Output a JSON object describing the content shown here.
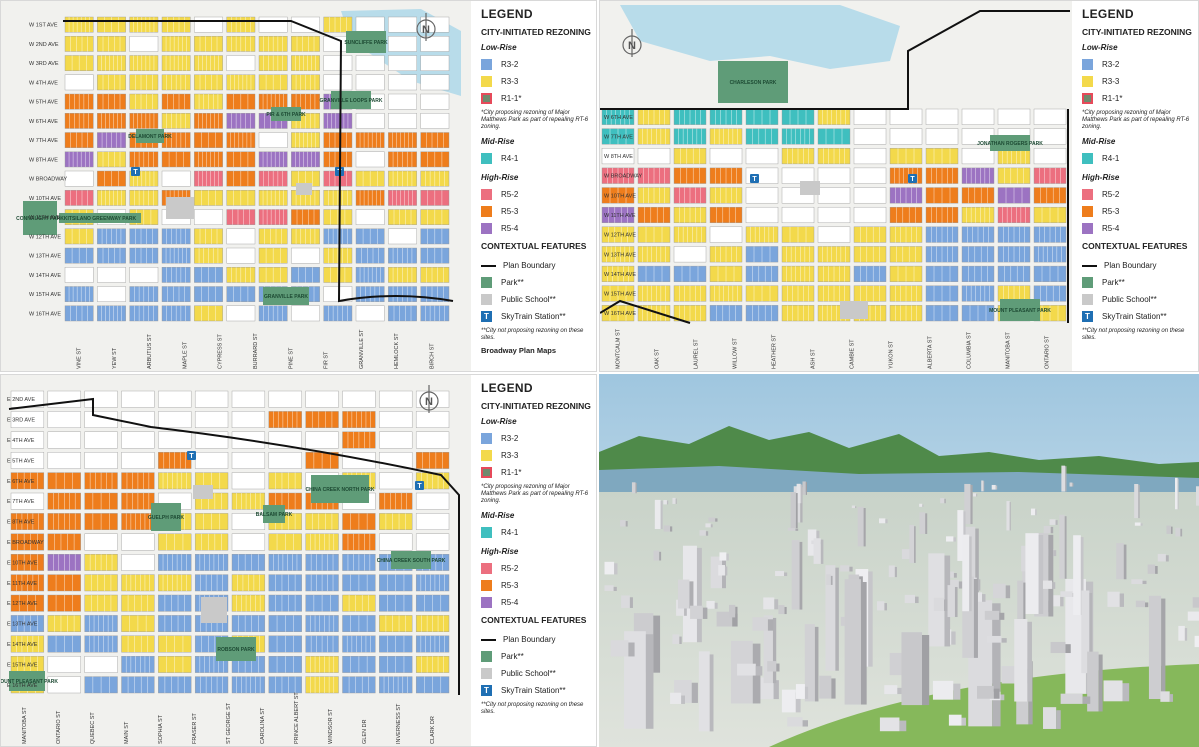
{
  "colors": {
    "R3-2": "#7aa5dc",
    "R3-3": "#f3d94b",
    "R1-1*": "#6f8a6e",
    "R4-1": "#3fbfbf",
    "R5-2": "#ec6f7f",
    "R5-3": "#ee7d1c",
    "R5-4": "#9c73c2",
    "park": "#5f9c78",
    "school": "#c9c9c9",
    "skytrain": "#1f6fb3",
    "water": "#b8dcea",
    "block": "#ffffff",
    "street": "#cfcfcf",
    "boundary": "#111111"
  },
  "legend": {
    "title": "LEGEND",
    "section": "CITY-INITIATED REZONING",
    "low_rise": "Low-Rise",
    "items_low": [
      "R3-2",
      "R3-3",
      "R1-1*"
    ],
    "note_r1": "*City proposing rezoning of Major Matthews Park as part of repealing RT-6 zoning.",
    "mid_rise": "Mid-Rise",
    "items_mid": [
      "R4-1"
    ],
    "high_rise": "High-Rise",
    "items_high": [
      "R5-2",
      "R5-3",
      "R5-4"
    ],
    "contextual": "CONTEXTUAL FEATURES",
    "plan_boundary": "Plan Boundary",
    "park": "Park**",
    "public_school": "Public School**",
    "skytrain": "SkyTrain Station**",
    "skytrain_glyph": "T",
    "note_park": "**City not proposing rezoning on these sites.",
    "source": "Broadway Plan Maps"
  },
  "north": "N",
  "map1": {
    "avenues": [
      "W 1ST AVE",
      "W 2ND AVE",
      "W 3RD AVE",
      "W 4TH AVE",
      "W 5TH AVE",
      "W 6TH AVE",
      "W 7TH AVE",
      "W 8TH AVE",
      "W BROADWAY",
      "W 10TH AVE",
      "W 11TH AVE",
      "W 12TH AVE",
      "W 13TH AVE",
      "W 14TH AVE",
      "W 15TH AVE",
      "W 16TH AVE"
    ],
    "streets": [
      "VINE ST",
      "YEW ST",
      "ARBUTUS ST",
      "MAPLE ST",
      "CYPRESS ST",
      "BURRARD ST",
      "PINE ST",
      "FIR ST",
      "GRANVILLE ST",
      "HEMLOCK ST",
      "BIRCH ST"
    ],
    "parks": [
      "SUNCLIFFE PARK",
      "GRANVILLE LOOPS PARK",
      "PIR & 6TH PARK",
      "DELAMONT PARK",
      "KITSILANO GREENWAY PARK",
      "CONNAUGHT PARK",
      "GRANVILLE PARK"
    ]
  },
  "map2": {
    "avenues": [
      "W 6TH AVE",
      "W 7TH AVE",
      "W 8TH AVE",
      "W BROADWAY",
      "W 10TH AVE",
      "W 11TH AVE",
      "W 12TH AVE",
      "W 13TH AVE",
      "W 14TH AVE",
      "W 15TH AVE",
      "W 16TH AVE"
    ],
    "streets": [
      "MONTCALM ST",
      "OAK ST",
      "LAUREL ST",
      "WILLOW ST",
      "HEATHER ST",
      "ASH ST",
      "CAMBIE ST",
      "YUKON ST",
      "ALBERTA ST",
      "COLUMBIA ST",
      "MANITOBA ST",
      "ONTARIO ST"
    ],
    "parks": [
      "CHARLESON PARK",
      "JONATHAN ROGERS PARK",
      "MOUNT PLEASANT PARK"
    ]
  },
  "map3": {
    "avenues": [
      "E 2ND AVE",
      "E 3RD AVE",
      "E 4TH AVE",
      "E 5TH AVE",
      "E 6TH AVE",
      "E 7TH AVE",
      "E 8TH AVE",
      "E BROADWAY",
      "E 10TH AVE",
      "E 11TH AVE",
      "E 12TH AVE",
      "E 13TH AVE",
      "E 14TH AVE",
      "E 15TH AVE",
      "E 16TH AVE"
    ],
    "streets": [
      "MANITOBA ST",
      "ONTARIO ST",
      "QUEBEC ST",
      "MAIN ST",
      "SOPHIA ST",
      "FRASER ST",
      "ST GEORGE ST",
      "CAROLINA ST",
      "PRINCE ALBERT ST",
      "WINDSOR ST",
      "GLEN DR",
      "INVERNESS ST",
      "CLARK DR"
    ],
    "parks": [
      "CHINA CREEK NORTH PARK",
      "GUELPH PARK",
      "BALSAM PARK",
      "CHINA CREEK SOUTH PARK",
      "ROBSON PARK",
      "MOUNT PLEASANT PARK"
    ]
  },
  "render": {
    "alt": "3D aerial rendering of Broadway Plan towers"
  }
}
